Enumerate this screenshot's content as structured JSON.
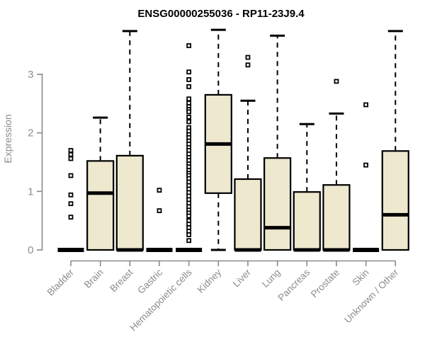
{
  "chart_data": {
    "type": "boxplot",
    "title": "ENSG00000255036 - RP11-23J9.4",
    "ylabel": "Expression",
    "xlabel": "",
    "yticks": [
      "0",
      "1",
      "2",
      "3"
    ],
    "ylim": [
      -0.07,
      3.85
    ],
    "grid": false,
    "legend": "none",
    "colors": {
      "box_fill": "#EDE8CE",
      "box_stroke": "#000000",
      "whisker": "#000000",
      "axis_line": "#8A8A8A",
      "axis_text": "#8C8C8C",
      "title_text": "#000000",
      "background": "#FFFFFF"
    },
    "categories": [
      "Bladder",
      "Brain",
      "Breast",
      "Gastric",
      "Hematopoietic cells",
      "Kidney",
      "Liver",
      "Lung",
      "Pancreas",
      "Prostate",
      "Skin",
      "Unknown / Other"
    ],
    "series": [
      {
        "name": "Bladder",
        "lo": 0,
        "q1": 0,
        "med": 0,
        "q3": 0,
        "hi": 0,
        "outliers": [
          0.56,
          0.79,
          0.94,
          1.27,
          1.56,
          1.63,
          1.7
        ]
      },
      {
        "name": "Brain",
        "lo": 0,
        "q1": 0,
        "med": 0.97,
        "q3": 1.52,
        "hi": 2.26,
        "outliers": []
      },
      {
        "name": "Breast",
        "lo": 0,
        "q1": 0,
        "med": 0,
        "q3": 1.61,
        "hi": 3.74,
        "outliers": []
      },
      {
        "name": "Gastric",
        "lo": 0,
        "q1": 0,
        "med": 0,
        "q3": 0,
        "hi": 0,
        "outliers": [
          0.67,
          1.02
        ]
      },
      {
        "name": "Hematopoietic cells",
        "lo": 0,
        "q1": 0,
        "med": 0,
        "q3": 0,
        "hi": 0,
        "outliers": [
          3.49,
          3.04,
          2.91,
          2.79,
          2.58,
          2.51,
          2.45,
          2.4,
          2.36,
          2.27,
          2.19,
          2.09,
          2.03,
          1.97,
          1.92,
          1.86,
          1.81,
          1.75,
          1.7,
          1.64,
          1.58,
          1.53,
          1.47,
          1.42,
          1.36,
          1.31,
          1.27,
          1.22,
          1.16,
          1.1,
          1.04,
          0.98,
          0.92,
          0.86,
          0.8,
          0.74,
          0.68,
          0.63,
          0.58,
          0.5,
          0.44,
          0.38,
          0.32,
          0.26,
          0.16
        ]
      },
      {
        "name": "Kidney",
        "lo": 0,
        "q1": 0.97,
        "med": 1.81,
        "q3": 2.65,
        "hi": 3.76,
        "outliers": []
      },
      {
        "name": "Liver",
        "lo": 0,
        "q1": 0,
        "med": 0,
        "q3": 1.21,
        "hi": 2.55,
        "outliers": [
          3.16,
          3.29
        ]
      },
      {
        "name": "Lung",
        "lo": 0,
        "q1": 0,
        "med": 0.38,
        "q3": 1.57,
        "hi": 3.66,
        "outliers": []
      },
      {
        "name": "Pancreas",
        "lo": 0,
        "q1": 0,
        "med": 0,
        "q3": 0.99,
        "hi": 2.15,
        "outliers": []
      },
      {
        "name": "Prostate",
        "lo": 0,
        "q1": 0,
        "med": 0,
        "q3": 1.11,
        "hi": 2.33,
        "outliers": [
          2.88
        ]
      },
      {
        "name": "Skin",
        "lo": 0,
        "q1": 0,
        "med": 0,
        "q3": 0,
        "hi": 0,
        "outliers": [
          1.45,
          2.48
        ]
      },
      {
        "name": "Unknown / Other",
        "lo": 0,
        "q1": 0,
        "med": 0.6,
        "q3": 1.69,
        "hi": 3.74,
        "outliers": []
      }
    ]
  }
}
